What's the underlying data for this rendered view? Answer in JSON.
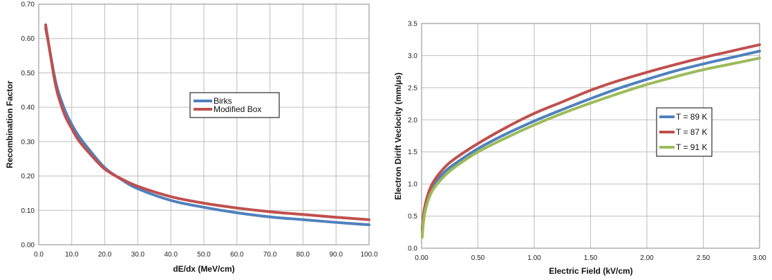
{
  "chart_data": [
    {
      "type": "line",
      "title": "",
      "xlabel": "dE/dx (MeV/cm)",
      "ylabel": "Recombination Factor",
      "xlim": [
        0,
        100
      ],
      "ylim": [
        0,
        0.7
      ],
      "x_ticks": [
        "0.0",
        "10.0",
        "20.0",
        "30.0",
        "40.0",
        "50.0",
        "60.0",
        "70.0",
        "80.0",
        "90.0",
        "100.0"
      ],
      "y_ticks": [
        "0.00",
        "0.10",
        "0.20",
        "0.30",
        "0.40",
        "0.50",
        "0.60",
        "0.70"
      ],
      "grid": true,
      "legend_position": "center",
      "x": [
        2.1,
        2.5,
        3,
        4,
        5,
        6,
        8,
        10,
        12,
        15,
        20,
        25,
        30,
        40,
        50,
        60,
        70,
        80,
        90,
        100
      ],
      "series": [
        {
          "name": "Birks",
          "color": "#4f81bd",
          "values": [
            0.63,
            0.61,
            0.585,
            0.53,
            0.48,
            0.443,
            0.39,
            0.35,
            0.318,
            0.28,
            0.224,
            0.19,
            0.163,
            0.129,
            0.109,
            0.093,
            0.081,
            0.073,
            0.065,
            0.058
          ]
        },
        {
          "name": "Modified Box",
          "color": "#c0504d",
          "values": [
            0.64,
            0.615,
            0.585,
            0.525,
            0.47,
            0.43,
            0.375,
            0.338,
            0.305,
            0.27,
            0.22,
            0.192,
            0.17,
            0.14,
            0.121,
            0.107,
            0.096,
            0.088,
            0.08,
            0.073
          ]
        }
      ]
    },
    {
      "type": "line",
      "title": "",
      "xlabel": "Electric Field (kV/cm)",
      "ylabel": "Electron Dirift Veclocity (mm/µs)",
      "xlim": [
        0,
        3.0
      ],
      "ylim": [
        0,
        3.5
      ],
      "x_ticks": [
        "0.00",
        "0.50",
        "1.00",
        "1.50",
        "2.00",
        "2.50",
        "3.00"
      ],
      "y_ticks": [
        "0.0",
        "0.5",
        "1.0",
        "1.5",
        "2.0",
        "2.5",
        "3.0",
        "3.5"
      ],
      "grid": true,
      "legend_position": "right",
      "x": [
        0.005,
        0.02,
        0.05,
        0.1,
        0.2,
        0.3,
        0.5,
        0.75,
        1.0,
        1.25,
        1.5,
        1.75,
        2.0,
        2.25,
        2.5,
        2.75,
        3.0
      ],
      "series": [
        {
          "name": "T = 89 K",
          "color": "#4f81bd",
          "values": [
            0.25,
            0.52,
            0.75,
            0.96,
            1.18,
            1.32,
            1.55,
            1.78,
            1.98,
            2.16,
            2.33,
            2.49,
            2.63,
            2.76,
            2.87,
            2.97,
            3.07
          ]
        },
        {
          "name": "T = 87 K",
          "color": "#c0504d",
          "values": [
            0.3,
            0.56,
            0.8,
            1.02,
            1.25,
            1.4,
            1.63,
            1.88,
            2.1,
            2.28,
            2.46,
            2.61,
            2.74,
            2.86,
            2.97,
            3.07,
            3.17
          ]
        },
        {
          "name": "T = 91 K",
          "color": "#9bbb59",
          "values": [
            0.17,
            0.46,
            0.7,
            0.91,
            1.12,
            1.27,
            1.5,
            1.72,
            1.92,
            2.1,
            2.26,
            2.41,
            2.55,
            2.67,
            2.78,
            2.87,
            2.96
          ]
        }
      ]
    }
  ]
}
